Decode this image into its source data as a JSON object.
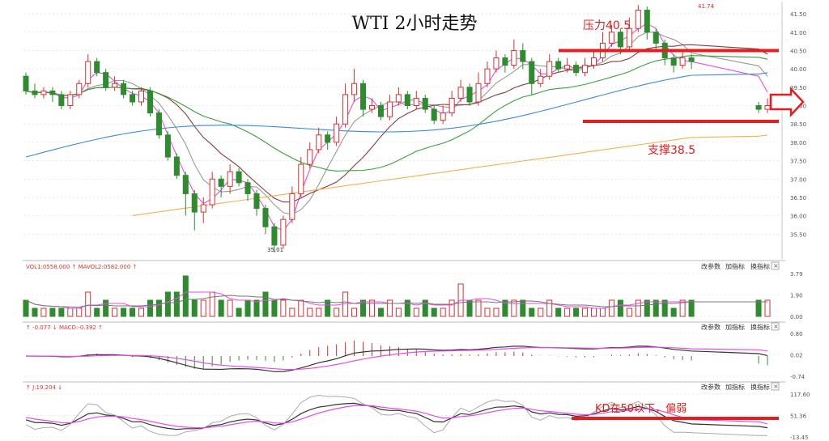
{
  "chart_data": {
    "type": "candlestick",
    "title": "WTI 2小时走势",
    "annotations": {
      "resistance": "压力40.5",
      "support": "支撑38.5",
      "kd_note": "KD在50以下，偏弱",
      "high_label": "41.74",
      "low_label": "35.01"
    },
    "resistance_level": 40.5,
    "support_level": 38.5,
    "price_axis": {
      "ylim": [
        35.0,
        41.7
      ],
      "ticks": [
        "41.50",
        "41.00",
        "40.50",
        "40.00",
        "39.50",
        "39.00",
        "38.50",
        "38.00",
        "37.50",
        "37.00",
        "36.50",
        "36.00",
        "35.50"
      ]
    },
    "candles": [
      [
        39.8,
        39.4,
        39.9,
        39.3
      ],
      [
        39.4,
        39.3,
        39.6,
        39.2
      ],
      [
        39.3,
        39.4,
        39.5,
        39.2
      ],
      [
        39.4,
        39.3,
        39.5,
        39.1
      ],
      [
        39.3,
        39.0,
        39.4,
        38.9
      ],
      [
        39.0,
        39.3,
        39.4,
        38.9
      ],
      [
        39.3,
        39.6,
        39.7,
        39.2
      ],
      [
        39.6,
        40.2,
        40.4,
        39.5
      ],
      [
        40.2,
        39.9,
        40.3,
        39.8
      ],
      [
        39.9,
        39.5,
        40.0,
        39.4
      ],
      [
        39.5,
        39.6,
        39.8,
        39.4
      ],
      [
        39.6,
        39.3,
        39.7,
        39.2
      ],
      [
        39.3,
        39.1,
        39.4,
        39.0
      ],
      [
        39.1,
        39.4,
        39.5,
        39.0
      ],
      [
        39.4,
        38.8,
        39.5,
        38.7
      ],
      [
        38.8,
        38.2,
        38.9,
        38.1
      ],
      [
        38.2,
        37.6,
        38.3,
        37.5
      ],
      [
        37.6,
        37.1,
        37.7,
        37.0
      ],
      [
        37.1,
        36.6,
        37.2,
        36.0
      ],
      [
        36.6,
        36.1,
        36.7,
        35.6
      ],
      [
        36.1,
        36.3,
        36.5,
        35.8
      ],
      [
        36.3,
        37.0,
        37.2,
        36.2
      ],
      [
        37.0,
        36.8,
        37.1,
        36.5
      ],
      [
        36.8,
        37.2,
        37.4,
        36.6
      ],
      [
        37.2,
        36.9,
        37.3,
        36.8
      ],
      [
        36.9,
        36.6,
        37.0,
        36.4
      ],
      [
        36.6,
        36.2,
        36.7,
        36.0
      ],
      [
        36.2,
        35.7,
        36.3,
        35.5
      ],
      [
        35.7,
        35.2,
        35.8,
        35.0
      ],
      [
        35.2,
        35.9,
        36.0,
        35.1
      ],
      [
        35.9,
        36.6,
        36.8,
        35.8
      ],
      [
        36.6,
        37.4,
        37.6,
        36.5
      ],
      [
        37.4,
        37.8,
        38.0,
        37.3
      ],
      [
        37.8,
        38.2,
        38.4,
        37.7
      ],
      [
        38.2,
        38.0,
        38.3,
        37.8
      ],
      [
        38.0,
        38.5,
        38.7,
        37.9
      ],
      [
        38.5,
        39.3,
        39.6,
        38.4
      ],
      [
        39.3,
        39.6,
        40.0,
        39.1
      ],
      [
        39.6,
        38.9,
        39.7,
        38.7
      ],
      [
        38.9,
        39.0,
        39.2,
        38.8
      ],
      [
        39.0,
        38.7,
        39.1,
        38.6
      ],
      [
        38.7,
        39.1,
        39.3,
        38.6
      ],
      [
        39.1,
        39.3,
        39.5,
        39.0
      ],
      [
        39.3,
        39.0,
        39.4,
        38.9
      ],
      [
        39.0,
        39.2,
        39.4,
        38.9
      ],
      [
        39.2,
        38.9,
        39.3,
        38.8
      ],
      [
        38.9,
        38.6,
        39.0,
        38.5
      ],
      [
        38.6,
        38.8,
        39.0,
        38.5
      ],
      [
        38.8,
        39.2,
        39.4,
        38.7
      ],
      [
        39.2,
        39.5,
        39.7,
        39.1
      ],
      [
        39.5,
        39.1,
        39.6,
        39.0
      ],
      [
        39.1,
        39.6,
        39.9,
        39.0
      ],
      [
        39.6,
        40.0,
        40.2,
        39.5
      ],
      [
        40.0,
        40.3,
        40.5,
        39.9
      ],
      [
        40.3,
        40.1,
        40.4,
        39.9
      ],
      [
        40.1,
        40.5,
        40.8,
        40.0
      ],
      [
        40.5,
        40.2,
        40.7,
        40.0
      ],
      [
        40.2,
        39.6,
        40.3,
        39.3
      ],
      [
        39.6,
        39.8,
        40.0,
        39.5
      ],
      [
        39.8,
        40.2,
        40.4,
        39.7
      ],
      [
        40.2,
        40.0,
        40.3,
        39.9
      ],
      [
        40.0,
        40.1,
        40.3,
        39.9
      ],
      [
        40.1,
        39.9,
        40.2,
        39.8
      ],
      [
        39.9,
        40.1,
        40.3,
        39.8
      ],
      [
        40.1,
        40.3,
        40.5,
        40.0
      ],
      [
        40.3,
        40.7,
        41.0,
        40.2
      ],
      [
        40.7,
        41.0,
        41.2,
        40.6
      ],
      [
        41.0,
        40.6,
        41.1,
        40.4
      ],
      [
        40.6,
        41.1,
        41.4,
        40.5
      ],
      [
        41.1,
        41.6,
        41.74,
        41.0
      ],
      [
        41.6,
        41.0,
        41.7,
        40.8
      ],
      [
        41.0,
        40.7,
        41.1,
        40.5
      ],
      [
        40.7,
        40.3,
        40.8,
        40.1
      ],
      [
        40.3,
        40.1,
        40.4,
        39.9
      ],
      [
        40.1,
        40.3,
        40.5,
        40.0
      ],
      [
        40.3,
        40.2,
        40.4,
        40.0
      ],
      [
        39.0,
        38.9,
        39.1,
        38.8
      ],
      [
        38.9,
        39.0,
        39.2,
        38.8
      ]
    ],
    "moving_averages_colors": [
      "#e64de6",
      "#999999",
      "#8b3a3a",
      "#3aa03a",
      "#3a8bd9",
      "#f5b050"
    ],
    "volume_panel": {
      "header": "VOL1:0558.000 ↑  MAVOL2:0582.000 ↑",
      "ticks": [
        "3.79",
        "1.90",
        "0.00"
      ],
      "values": [
        2,
        1,
        1,
        1,
        1,
        1,
        1,
        3,
        1,
        2,
        1,
        1,
        1,
        1,
        2,
        2,
        3,
        3,
        5,
        2,
        2,
        3,
        2,
        2,
        1,
        2,
        2,
        3,
        2,
        2,
        1,
        2,
        1,
        1,
        2,
        1,
        3,
        1,
        2,
        2,
        1,
        2,
        1,
        2,
        1,
        2,
        1,
        1,
        2,
        4,
        2,
        2,
        1,
        1,
        2,
        2,
        2,
        1,
        1,
        2,
        1,
        1,
        1,
        1,
        1,
        1,
        2,
        2,
        1,
        2,
        2,
        2,
        2,
        1,
        2,
        2,
        2,
        2
      ]
    },
    "macd_panel": {
      "header": "↑ -0.077 ↓ MACD:-0.392 ↑",
      "ticks": [
        "0.80",
        "0.02",
        "-0.74"
      ]
    },
    "kd_panel": {
      "header": "↑ J:19.204 ↓",
      "ticks": [
        "117.60",
        "51.36",
        "-13.45"
      ]
    },
    "panel_buttons": [
      "改参数",
      "加指标",
      "换指标"
    ]
  },
  "colors": {
    "up": "#d93030",
    "down": "#2e8b2e",
    "annotation": "#d93030",
    "grid": "#d8d8d8"
  }
}
